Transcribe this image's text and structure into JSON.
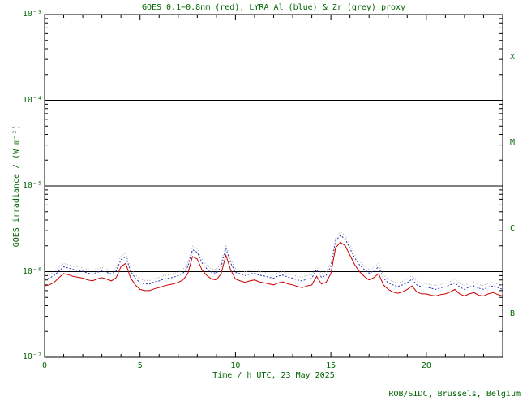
{
  "chart": {
    "title": "GOES 0.1−0.8nm (red), LYRA Al (blue) & Zr (grey) proxy",
    "xlabel": "Time / h UTC, 23 May 2025",
    "ylabel": "GOES irradiance / (W m⁻²)",
    "credit": "ROB/SIDC, Brussels, Belgium"
  },
  "chart_data": {
    "type": "line",
    "title": "GOES 0.1−0.8nm (red), LYRA Al (blue) & Zr (grey) proxy",
    "xlabel": "Time / h UTC, 23 May 2025",
    "ylabel": "GOES irradiance / (W m⁻²)",
    "xlim": [
      0,
      24
    ],
    "ylim": [
      1e-07,
      0.001
    ],
    "x_ticks_labeled": [
      0,
      5,
      10,
      15,
      20
    ],
    "x_minor_step": 1,
    "y_tick_exponents": [
      -3,
      -4,
      -5,
      -6,
      -7
    ],
    "y_tick_labels": [
      "10⁻³",
      "10⁻⁴",
      "10⁻⁵",
      "10⁻⁶",
      "10⁻⁷"
    ],
    "hlines": [
      0.0001,
      1e-05,
      1e-06
    ],
    "flare_classes": [
      {
        "label": "X",
        "range": [
          0.0001,
          0.001
        ]
      },
      {
        "label": "M",
        "range": [
          1e-05,
          0.0001
        ]
      },
      {
        "label": "C",
        "range": [
          1e-06,
          1e-05
        ]
      },
      {
        "label": "B",
        "range": [
          1e-07,
          1e-06
        ]
      }
    ],
    "colors": {
      "text": "#006400",
      "axis": "#000000"
    },
    "value_scale": 1e-06,
    "x_step_hours": 0.25,
    "series": [
      {
        "id": "goes",
        "name": "GOES 0.1−0.8nm",
        "color": "#cc0000",
        "values": [
          0.68,
          0.7,
          0.75,
          0.85,
          0.95,
          0.92,
          0.88,
          0.86,
          0.84,
          0.8,
          0.78,
          0.82,
          0.85,
          0.82,
          0.78,
          0.85,
          1.15,
          1.25,
          0.85,
          0.7,
          0.62,
          0.6,
          0.6,
          0.63,
          0.65,
          0.68,
          0.7,
          0.72,
          0.75,
          0.8,
          0.95,
          1.5,
          1.4,
          1.05,
          0.9,
          0.82,
          0.8,
          0.95,
          1.55,
          1.05,
          0.82,
          0.78,
          0.75,
          0.78,
          0.8,
          0.76,
          0.74,
          0.72,
          0.7,
          0.74,
          0.76,
          0.72,
          0.7,
          0.67,
          0.65,
          0.68,
          0.7,
          0.88,
          0.72,
          0.75,
          0.95,
          1.9,
          2.2,
          2.0,
          1.55,
          1.2,
          1.0,
          0.88,
          0.8,
          0.85,
          0.95,
          0.7,
          0.62,
          0.58,
          0.56,
          0.58,
          0.62,
          0.68,
          0.58,
          0.55,
          0.55,
          0.53,
          0.52,
          0.54,
          0.55,
          0.58,
          0.62,
          0.55,
          0.52,
          0.55,
          0.57,
          0.53,
          0.52,
          0.55,
          0.57,
          0.54,
          0.52
        ]
      },
      {
        "id": "lyra-al",
        "name": "LYRA Al proxy",
        "color": "#2233bb",
        "values": [
          0.82,
          0.84,
          0.9,
          1.02,
          1.14,
          1.1,
          1.06,
          1.03,
          1.01,
          0.96,
          0.94,
          0.98,
          1.02,
          0.98,
          0.94,
          1.02,
          1.38,
          1.5,
          1.02,
          0.84,
          0.74,
          0.72,
          0.72,
          0.76,
          0.78,
          0.82,
          0.84,
          0.86,
          0.9,
          0.96,
          1.14,
          1.8,
          1.68,
          1.26,
          1.08,
          0.98,
          0.96,
          1.14,
          1.86,
          1.26,
          0.98,
          0.94,
          0.9,
          0.94,
          0.96,
          0.91,
          0.89,
          0.86,
          0.84,
          0.89,
          0.91,
          0.86,
          0.84,
          0.8,
          0.78,
          0.82,
          0.84,
          1.06,
          0.86,
          0.9,
          1.14,
          2.28,
          2.64,
          2.4,
          1.86,
          1.44,
          1.2,
          1.06,
          0.96,
          1.02,
          1.14,
          0.84,
          0.74,
          0.7,
          0.67,
          0.7,
          0.74,
          0.82,
          0.7,
          0.66,
          0.66,
          0.64,
          0.62,
          0.65,
          0.66,
          0.7,
          0.74,
          0.66,
          0.62,
          0.66,
          0.68,
          0.64,
          0.62,
          0.66,
          0.68,
          0.65,
          0.62
        ]
      },
      {
        "id": "lyra-zr",
        "name": "LYRA Zr proxy",
        "color": "#a8a8a8",
        "values": [
          0.9,
          0.92,
          0.99,
          1.12,
          1.25,
          1.21,
          1.16,
          1.14,
          1.11,
          1.06,
          1.03,
          1.08,
          1.12,
          1.08,
          1.03,
          1.12,
          1.52,
          1.65,
          1.12,
          0.92,
          0.82,
          0.79,
          0.79,
          0.83,
          0.86,
          0.9,
          0.92,
          0.95,
          0.99,
          1.06,
          1.25,
          1.98,
          1.85,
          1.39,
          1.19,
          1.08,
          1.06,
          1.25,
          2.05,
          1.39,
          1.08,
          1.03,
          0.99,
          1.03,
          1.06,
          1.0,
          0.98,
          0.95,
          0.92,
          0.98,
          1.0,
          0.95,
          0.92,
          0.88,
          0.86,
          0.9,
          0.92,
          1.16,
          0.95,
          0.99,
          1.25,
          2.51,
          2.9,
          2.64,
          2.05,
          1.58,
          1.32,
          1.16,
          1.06,
          1.12,
          1.25,
          0.92,
          0.82,
          0.77,
          0.74,
          0.77,
          0.82,
          0.9,
          0.77,
          0.73,
          0.73,
          0.7,
          0.69,
          0.71,
          0.73,
          0.77,
          0.82,
          0.73,
          0.69,
          0.73,
          0.75,
          0.7,
          0.69,
          0.73,
          0.75,
          0.71,
          0.69
        ]
      }
    ]
  }
}
